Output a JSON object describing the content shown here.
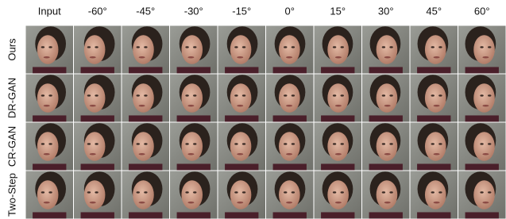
{
  "figure": {
    "columns": [
      "Input",
      "-60°",
      "-45°",
      "-30°",
      "-15°",
      "0°",
      "15°",
      "30°",
      "45°",
      "60°"
    ],
    "rows": [
      "Ours",
      "DR-GAN",
      "CR-GAN",
      "Two-Step"
    ]
  }
}
